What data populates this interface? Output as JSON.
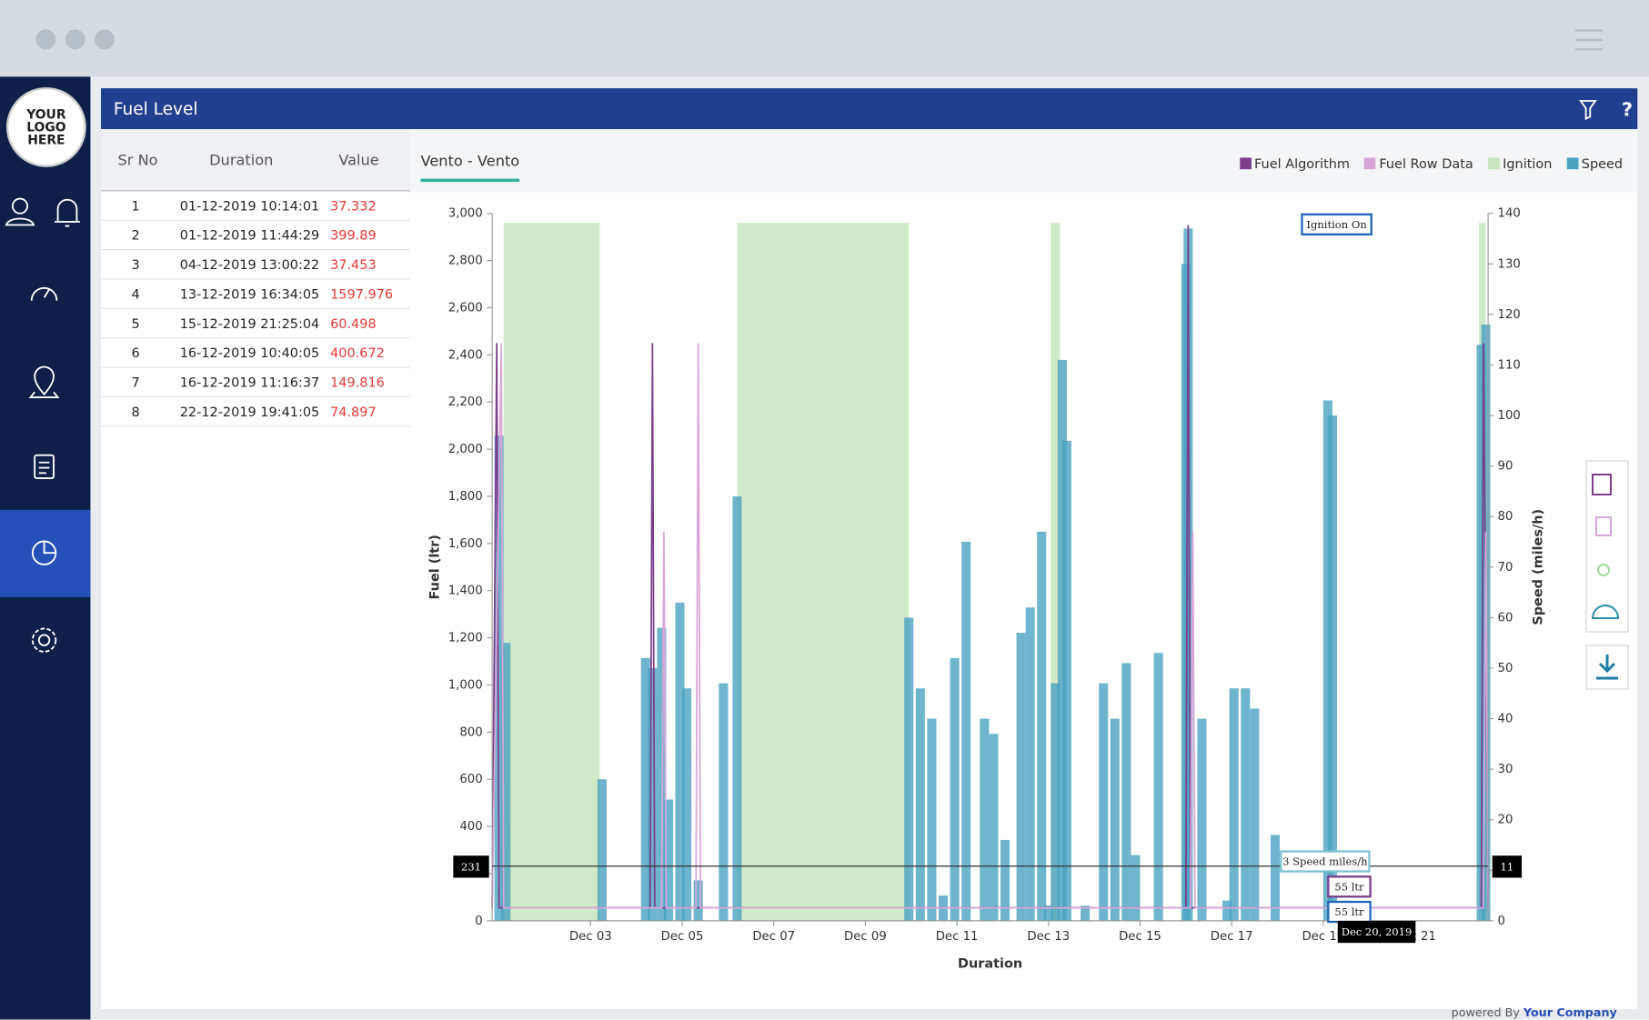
{
  "header": {
    "title": "Fuel Level"
  },
  "sidebar": {
    "logo": [
      "YOUR",
      "LOGO",
      "HERE"
    ]
  },
  "table": {
    "columns": [
      "Sr No",
      "Duration",
      "Value"
    ],
    "rows": [
      [
        "1",
        "01-12-2019 10:14:01",
        "37.332"
      ],
      [
        "2",
        "01-12-2019 11:44:29",
        "399.89"
      ],
      [
        "3",
        "04-12-2019 13:00:22",
        "37.453"
      ],
      [
        "4",
        "13-12-2019 16:34:05",
        "1597.976"
      ],
      [
        "5",
        "15-12-2019 21:25:04",
        "60.498"
      ],
      [
        "6",
        "16-12-2019 10:40:05",
        "400.672"
      ],
      [
        "7",
        "16-12-2019 11:16:37",
        "149.816"
      ],
      [
        "8",
        "22-12-2019 19:41:05",
        "74.897"
      ]
    ]
  },
  "footer": {
    "text": "powered By",
    "company": "Your Company"
  },
  "chart_data": {
    "type": "combo",
    "title": "Vento - Vento",
    "x_label": "Duration",
    "y_label": "Fuel (ltr)",
    "y2_label": "Speed (miles/h)",
    "xlim": [
      0.85,
      22.6
    ],
    "xticks": [
      {
        "value": 3,
        "label": "Dec 03"
      },
      {
        "value": 5,
        "label": "Dec 05"
      },
      {
        "value": 7,
        "label": "Dec 07"
      },
      {
        "value": 9,
        "label": "Dec 09"
      },
      {
        "value": 11,
        "label": "Dec 11"
      },
      {
        "value": 13,
        "label": "Dec 13"
      },
      {
        "value": 15,
        "label": "Dec 15"
      },
      {
        "value": 17,
        "label": "Dec 17"
      },
      {
        "value": 19,
        "label": "Dec 19"
      },
      {
        "value": 21,
        "label": "Dec 21"
      }
    ],
    "ylim": [
      0,
      3000
    ],
    "yticks": [
      0,
      200,
      400,
      600,
      800,
      {
        "value": 1000,
        "label": "1,000"
      },
      {
        "value": 1200,
        "label": "1,200"
      },
      {
        "value": 1400,
        "label": "1,400"
      },
      {
        "value": 1600,
        "label": "1,600"
      },
      {
        "value": 1800,
        "label": "1,800"
      },
      {
        "value": 2000,
        "label": "2,000"
      },
      {
        "value": 2200,
        "label": "2,200"
      },
      {
        "value": 2400,
        "label": "2,400"
      },
      {
        "value": 2600,
        "label": "2,600"
      },
      {
        "value": 2800,
        "label": "2,800"
      },
      {
        "value": 3000,
        "label": "3,000"
      }
    ],
    "y2lim": [
      0,
      140
    ],
    "y2ticks": [
      0,
      10,
      20,
      30,
      40,
      50,
      60,
      70,
      80,
      90,
      100,
      110,
      120,
      130,
      140
    ],
    "series": [
      {
        "name": "Fuel Algorithm",
        "color": "#7b3f8c",
        "kind": "line",
        "x": [
          0.85,
          0.95,
          1.0,
          4.3,
          4.35,
          4.4,
          16.0,
          16.05,
          16.1,
          22.45,
          22.5,
          22.6
        ],
        "values": [
          55,
          2450,
          55,
          55,
          2450,
          55,
          55,
          2950,
          55,
          55,
          2450,
          55
        ]
      },
      {
        "name": "Fuel Row Data",
        "color": "#d9a6d9",
        "kind": "line",
        "x": [
          0.85,
          1.05,
          1.1,
          4.55,
          4.6,
          4.65,
          5.3,
          5.35,
          5.4,
          16.1,
          16.15,
          16.2,
          22.5,
          22.55,
          22.6
        ],
        "values": [
          55,
          2450,
          55,
          55,
          1650,
          55,
          55,
          2450,
          55,
          55,
          1650,
          55,
          55,
          1650,
          55
        ]
      },
      {
        "name": "Ignition",
        "color": "#c8e6c0",
        "kind": "band",
        "ranges": [
          [
            1.1,
            3.2
          ],
          [
            6.2,
            9.95
          ],
          [
            13.05,
            13.25
          ],
          [
            22.4,
            22.55
          ]
        ]
      },
      {
        "name": "Speed",
        "color": "#4aa3c0",
        "kind": "area",
        "axis": "y2",
        "x": [
          1.0,
          1.15,
          3.25,
          4.2,
          4.35,
          4.55,
          4.7,
          4.95,
          5.1,
          5.35,
          5.9,
          6.2,
          9.95,
          10.2,
          10.45,
          10.7,
          10.95,
          11.2,
          11.6,
          11.8,
          12.05,
          12.4,
          12.6,
          12.85,
          13.0,
          13.15,
          13.3,
          13.4,
          13.8,
          14.2,
          14.45,
          14.7,
          14.9,
          15.4,
          16.0,
          16.05,
          16.35,
          16.9,
          17.05,
          17.3,
          17.5,
          17.95,
          19.1,
          19.2,
          19.5,
          22.45,
          22.55
        ],
        "values": [
          96,
          55,
          28,
          52,
          50,
          58,
          24,
          63,
          46,
          8,
          47,
          84,
          60,
          46,
          40,
          5,
          52,
          75,
          40,
          37,
          16,
          57,
          62,
          77,
          3,
          47,
          111,
          95,
          3,
          47,
          40,
          51,
          13,
          53,
          130,
          137,
          40,
          4,
          46,
          46,
          42,
          17,
          103,
          100,
          4,
          114,
          118
        ]
      }
    ],
    "annotations": {
      "ignition": "Ignition On",
      "speed": "3 Speed miles/h",
      "fuel_algorithm": "55 ltr",
      "fuel_row": "55 ltr",
      "date": "Dec 20, 2019",
      "cursor_y": "231",
      "cursor_y2": "11"
    }
  }
}
